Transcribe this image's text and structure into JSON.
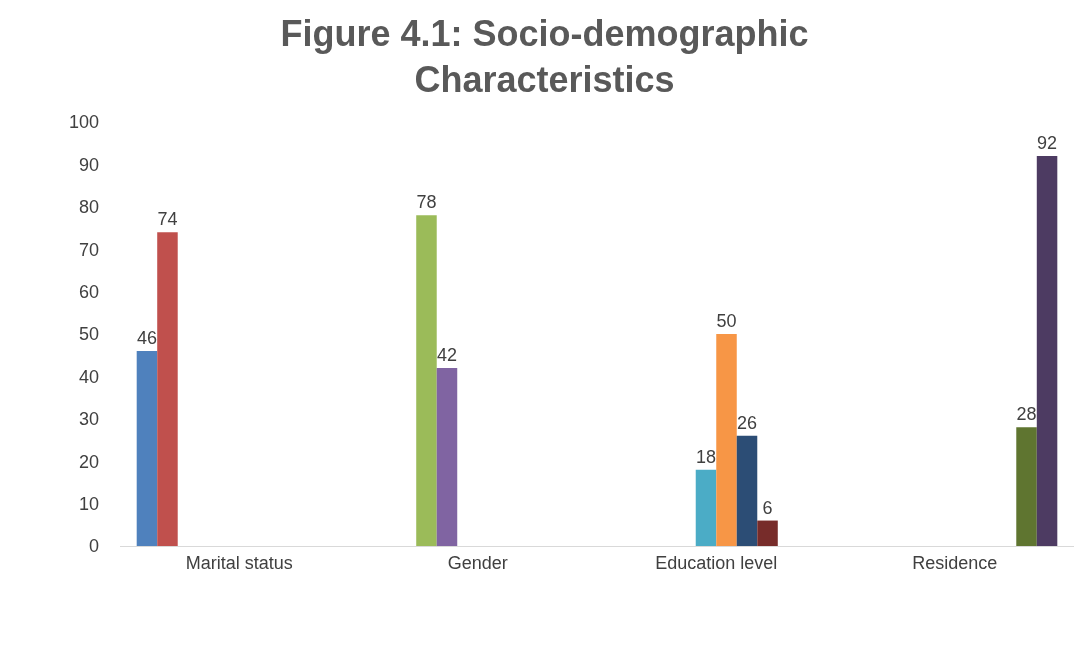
{
  "chart_data": {
    "type": "bar",
    "title": "Figure 4.1: Socio-demographic\nCharacteristics",
    "categories": [
      "Marital status",
      "Gender",
      "Education level",
      "Residence"
    ],
    "series": [
      {
        "color": "#4f81bd",
        "values": [
          46,
          null,
          null,
          null
        ]
      },
      {
        "color": "#c0504d",
        "values": [
          74,
          null,
          null,
          null
        ]
      },
      {
        "color": "#9bbb59",
        "values": [
          null,
          78,
          null,
          null
        ]
      },
      {
        "color": "#8064a2",
        "values": [
          null,
          42,
          null,
          null
        ]
      },
      {
        "color": "#4bacc6",
        "values": [
          null,
          null,
          18,
          null
        ]
      },
      {
        "color": "#f79646",
        "values": [
          null,
          null,
          50,
          null
        ]
      },
      {
        "color": "#2c4d75",
        "values": [
          null,
          null,
          26,
          null
        ]
      },
      {
        "color": "#772c2a",
        "values": [
          null,
          null,
          6,
          null
        ]
      },
      {
        "color": "#5f7530",
        "values": [
          null,
          null,
          null,
          28
        ]
      },
      {
        "color": "#4d3b62",
        "values": [
          null,
          null,
          null,
          92
        ]
      }
    ],
    "ylim": [
      0,
      100
    ],
    "yticks": [
      0,
      10,
      20,
      30,
      40,
      50,
      60,
      70,
      80,
      90,
      100
    ],
    "data_labels": true
  }
}
